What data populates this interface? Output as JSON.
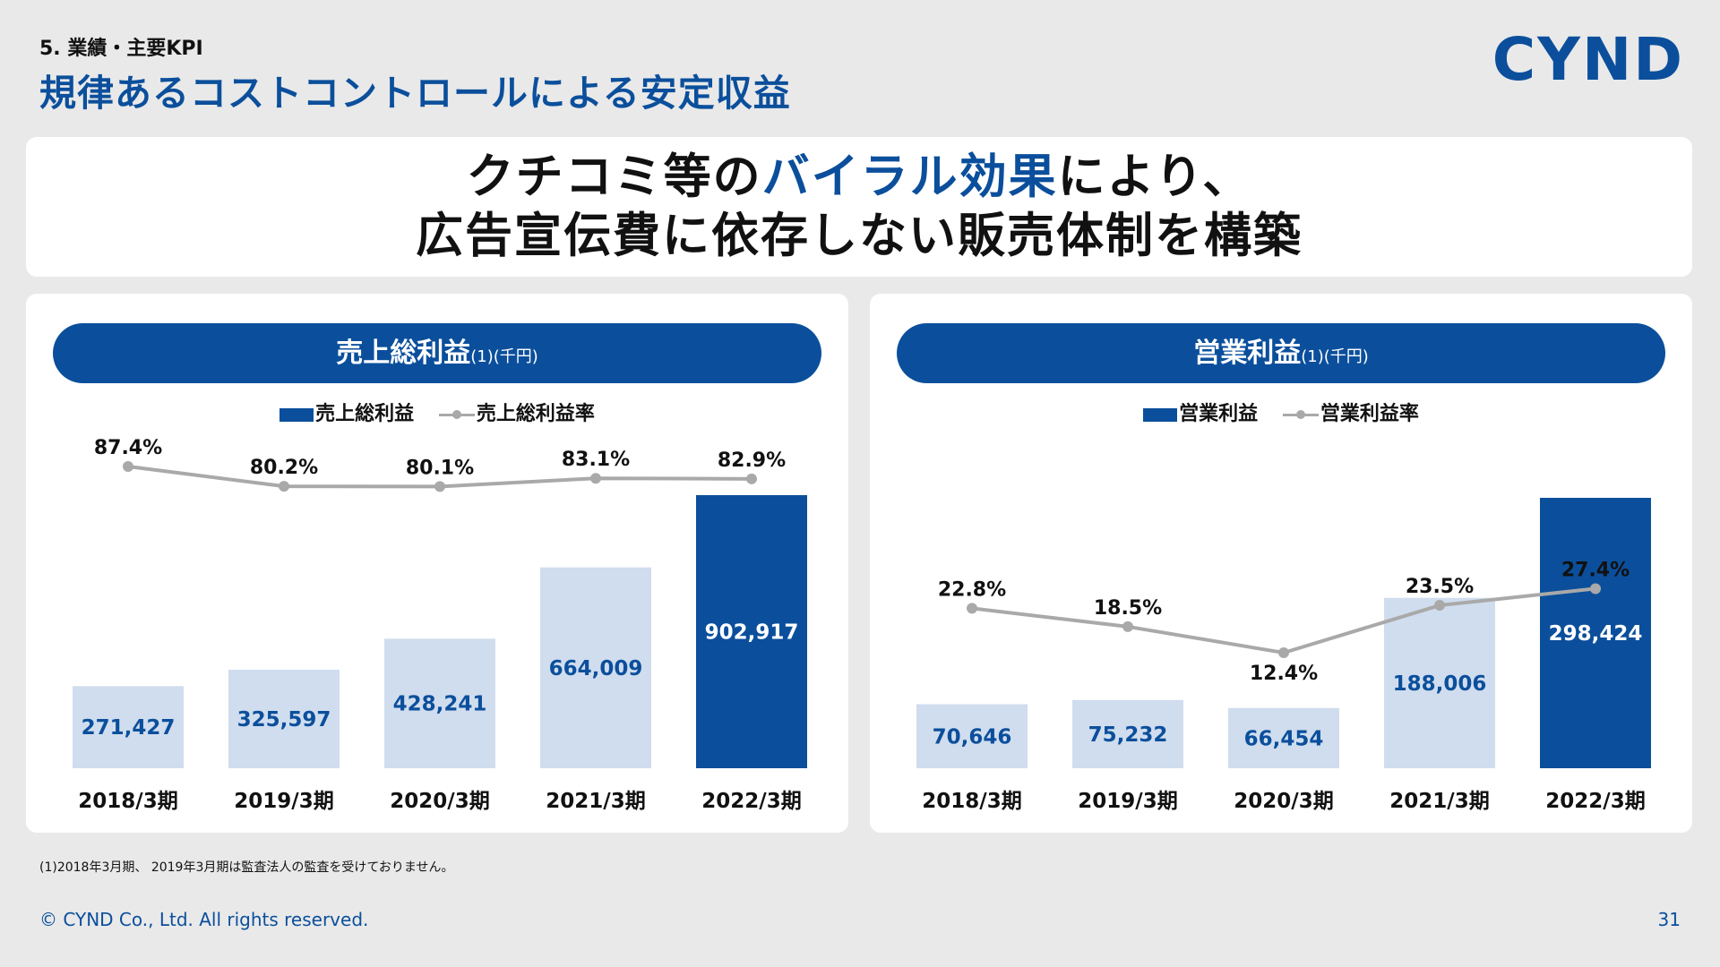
{
  "header": {
    "section_label": "5. 業績・主要KPI",
    "title": "規律あるコストコントロールによる安定収益",
    "logo": "CYND"
  },
  "headline": {
    "line1_pre": "クチコミ等の",
    "line1_highlight": "バイラル効果",
    "line1_post": "により、",
    "line2": "広告宣伝費に依存しない販売体制を構築"
  },
  "colors": {
    "brand": "#0b4f9c",
    "bar_light": "#d0ddee",
    "line": "#a9a9a9"
  },
  "chart_data": [
    {
      "type": "bar",
      "title": "売上総利益",
      "title_note": "(1)(千円)",
      "categories": [
        "2018/3期",
        "2019/3期",
        "2020/3期",
        "2021/3期",
        "2022/3期"
      ],
      "series": [
        {
          "name": "売上総利益",
          "type": "bar",
          "values": [
            271427,
            325597,
            428241,
            664009,
            902917
          ],
          "labels": [
            "271,427",
            "325,597",
            "428,241",
            "664,009",
            "902,917"
          ]
        },
        {
          "name": "売上総利益率",
          "type": "line",
          "values": [
            87.4,
            80.2,
            80.1,
            83.1,
            82.9
          ],
          "labels": [
            "87.4%",
            "80.2%",
            "80.1%",
            "83.1%",
            "82.9%"
          ]
        }
      ],
      "highlight_index": 4,
      "legend_position": "top-center",
      "grid": false
    },
    {
      "type": "bar",
      "title": "営業利益",
      "title_note": "(1)(千円)",
      "categories": [
        "2018/3期",
        "2019/3期",
        "2020/3期",
        "2021/3期",
        "2022/3期"
      ],
      "series": [
        {
          "name": "営業利益",
          "type": "bar",
          "values": [
            70646,
            75232,
            66454,
            188006,
            298424
          ],
          "labels": [
            "70,646",
            "75,232",
            "66,454",
            "188,006",
            "298,424"
          ]
        },
        {
          "name": "営業利益率",
          "type": "line",
          "values": [
            22.8,
            18.5,
            12.4,
            23.5,
            27.4
          ],
          "labels": [
            "22.8%",
            "18.5%",
            "12.4%",
            "23.5%",
            "27.4%"
          ]
        }
      ],
      "highlight_index": 4,
      "legend_position": "top-center",
      "grid": false
    }
  ],
  "footer": {
    "footnote": "(1)2018年3月期、 2019年3月期は監査法人の監査を受けておりません。",
    "copyright": "© CYND Co., Ltd. All rights reserved.",
    "page_number": "31"
  }
}
